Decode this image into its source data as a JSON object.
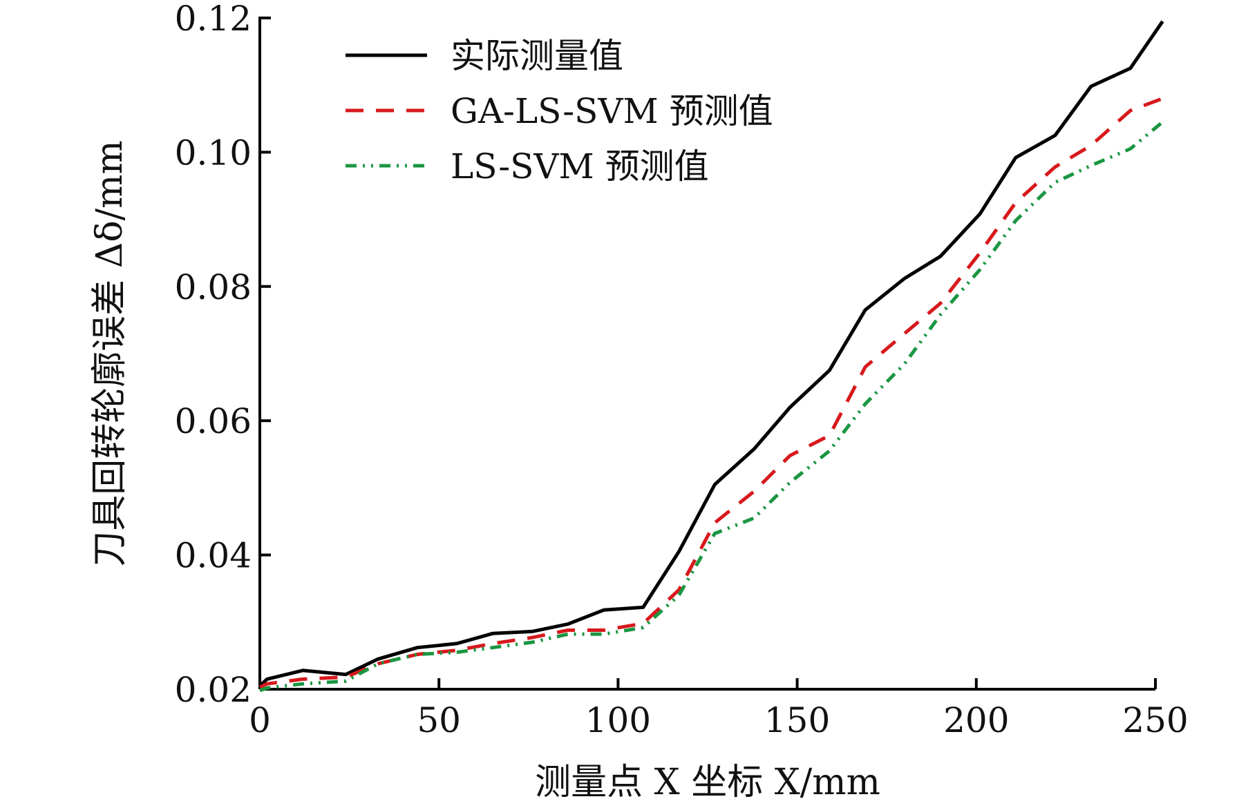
{
  "chart_data": {
    "type": "line",
    "title": "",
    "xlabel": "测量点 X 坐标 X/mm",
    "ylabel": "刀具回转轮廓误差 Δδ/mm",
    "xlim": [
      0,
      250
    ],
    "ylim": [
      0.02,
      0.12
    ],
    "xticks": [
      0,
      50,
      100,
      150,
      200,
      250
    ],
    "yticks": [
      0.02,
      0.04,
      0.06,
      0.08,
      0.1,
      0.12
    ],
    "xtick_labels": [
      "0",
      "50",
      "100",
      "150",
      "200",
      "250"
    ],
    "ytick_labels": [
      "0.02",
      "0.04",
      "0.06",
      "0.08",
      "0.10",
      "0.12"
    ],
    "grid": false,
    "legend_position": "top-left",
    "x": [
      0,
      2,
      12,
      24,
      33,
      44,
      55,
      65,
      76,
      86,
      96,
      107,
      117,
      127,
      138,
      148,
      159,
      169,
      180,
      190,
      201,
      211,
      222,
      232,
      243,
      252
    ],
    "series": [
      {
        "name": "实际测量值",
        "color": "#000000",
        "style": "solid",
        "values": [
          0.0205,
          0.0215,
          0.0228,
          0.0222,
          0.0245,
          0.0262,
          0.0268,
          0.0283,
          0.0286,
          0.0297,
          0.0318,
          0.0322,
          0.0405,
          0.0505,
          0.0558,
          0.062,
          0.0675,
          0.0765,
          0.0812,
          0.0845,
          0.0908,
          0.0992,
          0.1025,
          0.1098,
          0.1125,
          0.1195
        ]
      },
      {
        "name": "GA-LS-SVM 预测值",
        "color": "#d7191c",
        "style": "dashed",
        "values": [
          0.0203,
          0.0208,
          0.0215,
          0.0218,
          0.0238,
          0.0252,
          0.0258,
          0.0268,
          0.0277,
          0.0288,
          0.0288,
          0.0298,
          0.0348,
          0.0448,
          0.0495,
          0.0548,
          0.0578,
          0.068,
          0.073,
          0.0775,
          0.085,
          0.0925,
          0.0978,
          0.101,
          0.1062,
          0.108
        ]
      },
      {
        "name": "LS-SVM 预测值",
        "color": "#1a9641",
        "style": "dashdot",
        "values": [
          0.0198,
          0.0202,
          0.0208,
          0.0212,
          0.0238,
          0.0252,
          0.0255,
          0.0262,
          0.027,
          0.0282,
          0.0282,
          0.0292,
          0.034,
          0.0432,
          0.0455,
          0.0508,
          0.0555,
          0.0625,
          0.0685,
          0.0758,
          0.0825,
          0.0898,
          0.0955,
          0.098,
          0.1005,
          0.1045
        ]
      }
    ]
  }
}
